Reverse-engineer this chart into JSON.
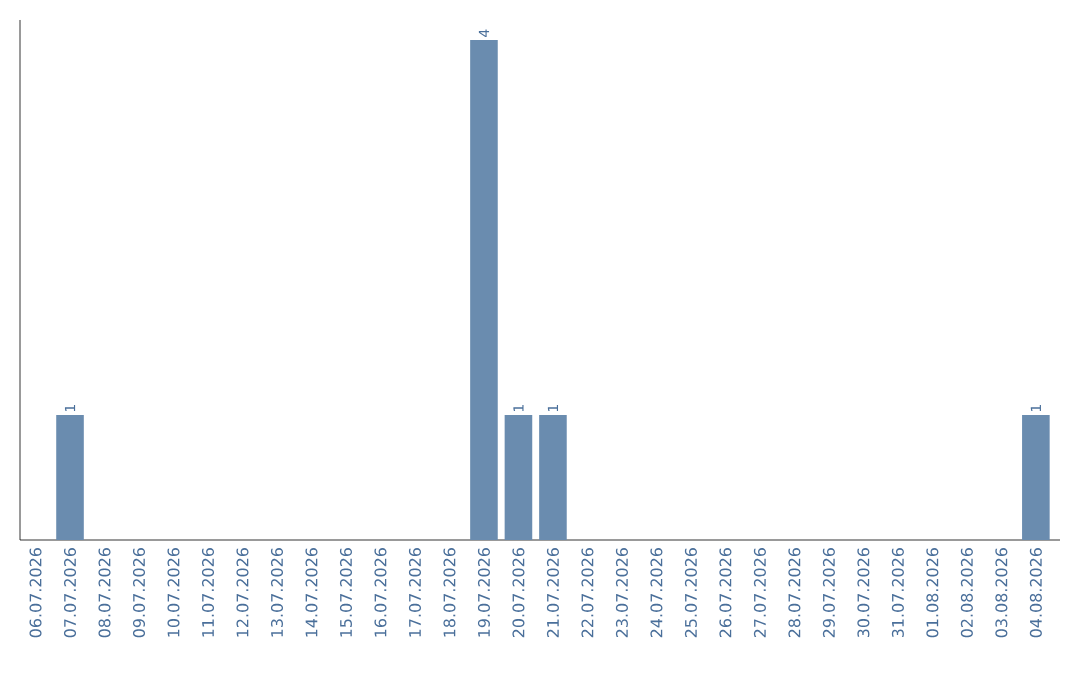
{
  "chart_data": {
    "type": "bar",
    "categories": [
      "06.07.2026",
      "07.07.2026",
      "08.07.2026",
      "09.07.2026",
      "10.07.2026",
      "11.07.2026",
      "12.07.2026",
      "13.07.2026",
      "14.07.2026",
      "15.07.2026",
      "16.07.2026",
      "17.07.2026",
      "18.07.2026",
      "19.07.2026",
      "20.07.2026",
      "21.07.2026",
      "22.07.2026",
      "23.07.2026",
      "24.07.2026",
      "25.07.2026",
      "26.07.2026",
      "27.07.2026",
      "28.07.2026",
      "29.07.2026",
      "30.07.2026",
      "31.07.2026",
      "01.08.2026",
      "02.08.2026",
      "03.08.2026",
      "04.08.2026"
    ],
    "values": [
      0,
      1,
      0,
      0,
      0,
      0,
      0,
      0,
      0,
      0,
      0,
      0,
      0,
      4,
      1,
      1,
      0,
      0,
      0,
      0,
      0,
      0,
      0,
      0,
      0,
      0,
      0,
      0,
      0,
      1
    ],
    "value_labels": [
      null,
      "1",
      null,
      null,
      null,
      null,
      null,
      null,
      null,
      null,
      null,
      null,
      null,
      "4",
      "1",
      "1",
      null,
      null,
      null,
      null,
      null,
      null,
      null,
      null,
      null,
      null,
      null,
      null,
      null,
      "1"
    ],
    "color": "#6a8caf",
    "tick_labels": "x",
    "grid": false
  }
}
